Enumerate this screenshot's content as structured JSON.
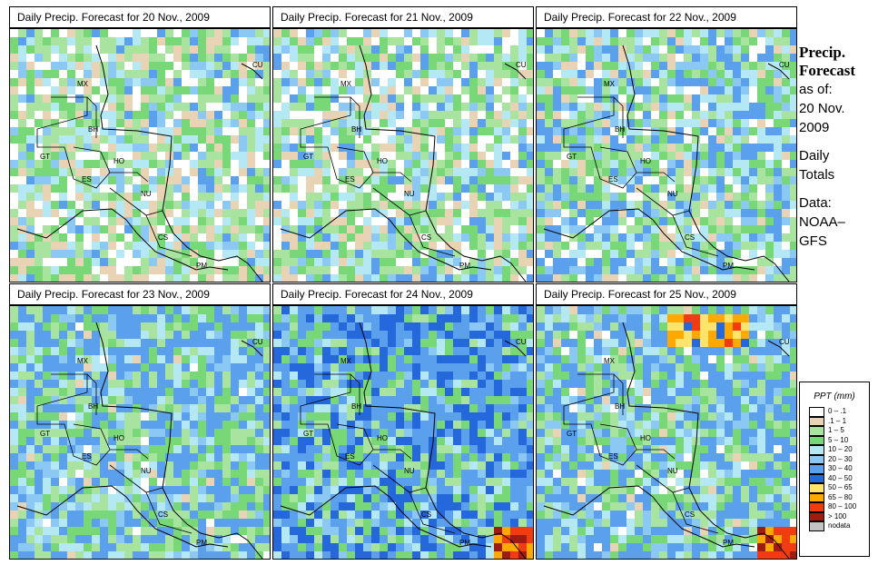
{
  "panels": [
    {
      "title": "Daily Precip. Forecast for  20 Nov., 2009",
      "rain": 1,
      "heavy": 0
    },
    {
      "title": "Daily Precip. Forecast for  21 Nov., 2009",
      "rain": 1,
      "heavy": 0
    },
    {
      "title": "Daily Precip. Forecast for  22 Nov., 2009",
      "rain": 2,
      "heavy": 0
    },
    {
      "title": "Daily Precip. Forecast for  23 Nov., 2009",
      "rain": 3,
      "heavy": 0
    },
    {
      "title": "Daily Precip. Forecast for  24 Nov., 2009",
      "rain": 4,
      "heavy": 1
    },
    {
      "title": "Daily Precip. Forecast for  25 Nov., 2009",
      "rain": 3,
      "heavy": 2
    }
  ],
  "countries": [
    "MX",
    "BH",
    "GT",
    "HO",
    "ES",
    "NU",
    "CS",
    "PM",
    "CU"
  ],
  "sidebar": {
    "title1": "Precip.",
    "title2": "Forecast",
    "asof_label": "as of:",
    "date1": "20 Nov.",
    "date2": "2009",
    "daily1": "Daily",
    "daily2": "Totals",
    "data_label": "Data:",
    "source1": "NOAA–",
    "source2": "GFS"
  },
  "legend": {
    "title": "PPT (mm)",
    "items": [
      {
        "label": "0 – .1",
        "color": "#ffffff"
      },
      {
        "label": ".1 – 1",
        "color": "#e8d4b4"
      },
      {
        "label": "1 – 5",
        "color": "#a8e4a0"
      },
      {
        "label": "5 – 10",
        "color": "#78d878"
      },
      {
        "label": "10 – 20",
        "color": "#b4e8f4"
      },
      {
        "label": "20 – 30",
        "color": "#8cc8f4"
      },
      {
        "label": "30 – 40",
        "color": "#5aa0ec"
      },
      {
        "label": "40 – 50",
        "color": "#2468dc"
      },
      {
        "label": "50 – 65",
        "color": "#ffe46c"
      },
      {
        "label": "65 – 80",
        "color": "#ffa800"
      },
      {
        "label": "80 – 100",
        "color": "#f03c10"
      },
      {
        "label": "> 100",
        "color": "#a01c10"
      },
      {
        "label": "nodata",
        "color": "#c4c4c4"
      }
    ]
  }
}
